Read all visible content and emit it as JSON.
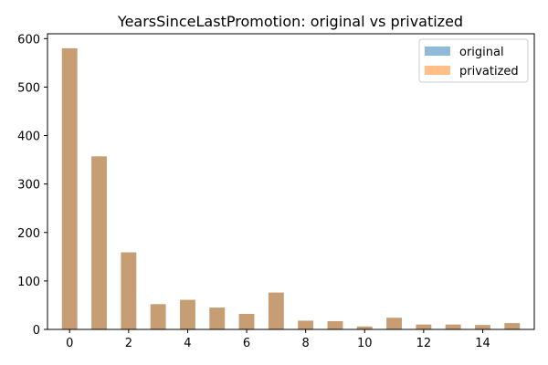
{
  "chart_data": {
    "type": "bar",
    "title": "YearsSinceLastPromotion: original vs privatized",
    "xlabel": "",
    "ylabel": "",
    "xlim": [
      -0.75,
      15.75
    ],
    "ylim": [
      0,
      610
    ],
    "xticks": [
      0,
      2,
      4,
      6,
      8,
      10,
      12,
      14
    ],
    "yticks": [
      0,
      100,
      200,
      300,
      400,
      500,
      600
    ],
    "x": [
      0,
      1,
      2,
      3,
      4,
      5,
      6,
      7,
      8,
      9,
      10,
      11,
      12,
      13,
      14,
      15
    ],
    "series": [
      {
        "name": "original",
        "color": "#1f77b4",
        "opacity": 0.5,
        "values": [
          580,
          357,
          159,
          52,
          61,
          45,
          32,
          76,
          18,
          17,
          6,
          24,
          10,
          10,
          9,
          13
        ]
      },
      {
        "name": "privatized",
        "color": "#ff7f0e",
        "opacity": 0.5,
        "values": [
          580,
          357,
          159,
          52,
          61,
          45,
          32,
          76,
          18,
          17,
          6,
          24,
          10,
          10,
          9,
          13
        ]
      }
    ],
    "grid": false,
    "legend_position": "top-right"
  }
}
